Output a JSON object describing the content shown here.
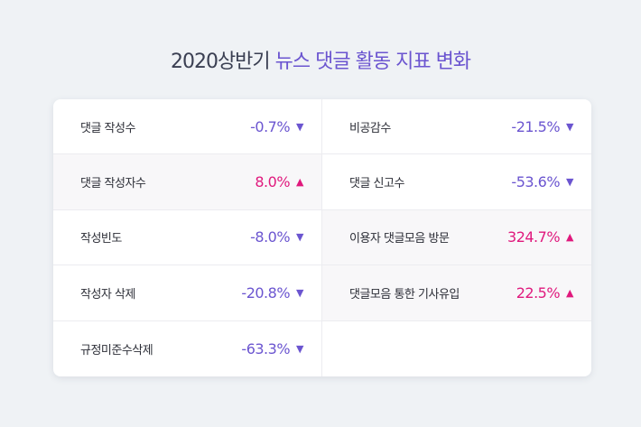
{
  "title": {
    "prefix": "2020상반기",
    "highlight": "뉴스 댓글 활동 지표 변화"
  },
  "colors": {
    "decrease": "#6b55d0",
    "increase": "#e0197d",
    "background": "#eff2f5"
  },
  "icons": {
    "down": "▼",
    "up": "▲"
  },
  "metrics": {
    "left": [
      {
        "label": "댓글 작성수",
        "value": "-0.7%",
        "direction": "down"
      },
      {
        "label": "댓글 작성자수",
        "value": "8.0%",
        "direction": "up"
      },
      {
        "label": "작성빈도",
        "value": "-8.0%",
        "direction": "down"
      },
      {
        "label": "작성자 삭제",
        "value": "-20.8%",
        "direction": "down"
      },
      {
        "label": "규정미준수삭제",
        "value": "-63.3%",
        "direction": "down"
      }
    ],
    "right": [
      {
        "label": "비공감수",
        "value": "-21.5%",
        "direction": "down"
      },
      {
        "label": "댓글 신고수",
        "value": "-53.6%",
        "direction": "down"
      },
      {
        "label": "이용자 댓글모음 방문",
        "value": "324.7%",
        "direction": "up"
      },
      {
        "label": "댓글모음 통한 기사유입",
        "value": "22.5%",
        "direction": "up"
      }
    ]
  }
}
